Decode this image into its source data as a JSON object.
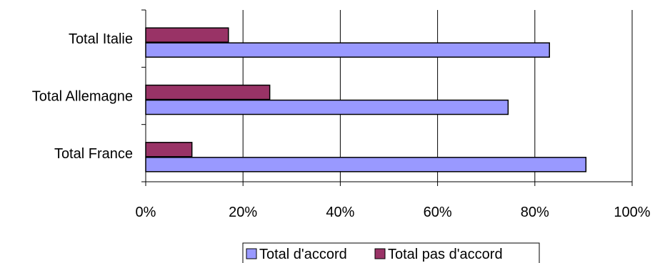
{
  "chart_data": {
    "type": "bar",
    "orientation": "horizontal",
    "categories": [
      "Total Italie",
      "Total Allemagne",
      "Total France"
    ],
    "series": [
      {
        "name": "Total d'accord",
        "values": [
          83,
          74.5,
          90.5
        ],
        "color": "#9999ff"
      },
      {
        "name": "Total pas d'accord",
        "values": [
          17,
          25.5,
          9.5
        ],
        "color": "#993366"
      }
    ],
    "x_ticks": [
      "0%",
      "20%",
      "40%",
      "60%",
      "80%",
      "100%"
    ],
    "xlim": [
      0,
      100
    ],
    "unit": "%",
    "grid": "vertical major gridlines",
    "legend_position": "bottom"
  }
}
